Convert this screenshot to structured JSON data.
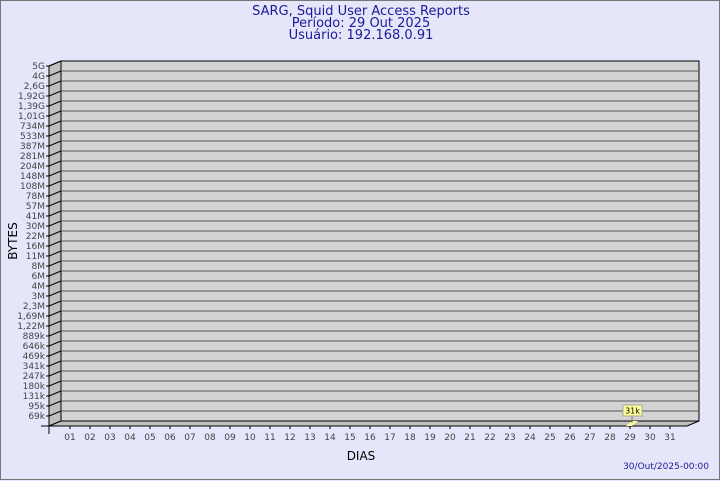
{
  "chart_data": {
    "type": "bar",
    "title": "SARG, Squid User Access Reports",
    "subtitle_period": "Período: 29 Out 2025",
    "subtitle_user": "Usuário: 192.168.0.91",
    "xlabel": "DIAS",
    "ylabel": "BYTES",
    "y_scale": "log",
    "y_tick_labels": [
      "5G",
      "4G",
      "2,6G",
      "1,92G",
      "1,39G",
      "1,01G",
      "734M",
      "533M",
      "387M",
      "281M",
      "204M",
      "148M",
      "108M",
      "78M",
      "57M",
      "41M",
      "30M",
      "22M",
      "16M",
      "11M",
      "8M",
      "6M",
      "4M",
      "3M",
      "2,3M",
      "1,69M",
      "1,22M",
      "889k",
      "646k",
      "469k",
      "341k",
      "247k",
      "180k",
      "131k",
      "95k",
      "69k"
    ],
    "categories": [
      "01",
      "02",
      "03",
      "04",
      "05",
      "06",
      "07",
      "08",
      "09",
      "10",
      "11",
      "12",
      "13",
      "14",
      "15",
      "16",
      "17",
      "18",
      "19",
      "20",
      "21",
      "22",
      "23",
      "24",
      "25",
      "26",
      "27",
      "28",
      "29",
      "30",
      "31"
    ],
    "data_points": [
      {
        "day": "29",
        "value_label": "31k",
        "bytes": 31000
      }
    ],
    "grid": true,
    "colors": {
      "plot_bg": "#d3d3d3",
      "wall": "#c0c0c0",
      "bar": "#ffff99",
      "title": "#1a1a99",
      "background": "#e6e6fa"
    }
  },
  "footer": {
    "timestamp": "30/Out/2025-00:00"
  }
}
